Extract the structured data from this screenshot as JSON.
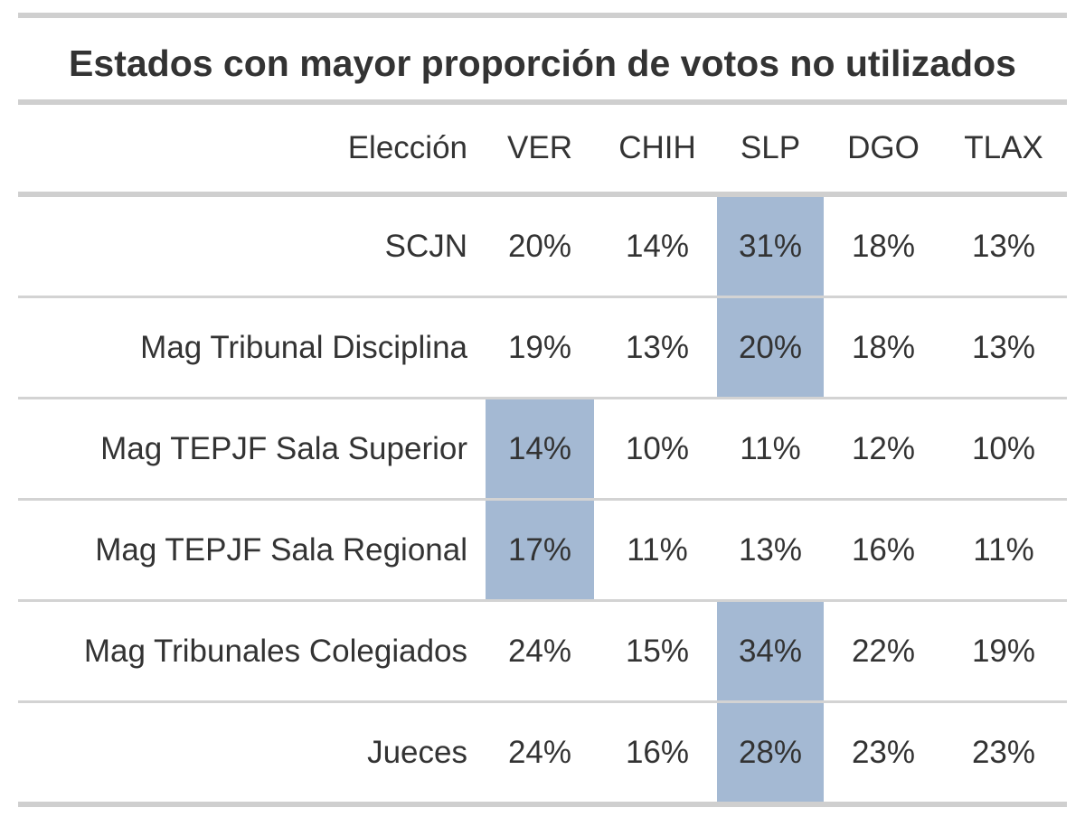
{
  "table": {
    "title": "Estados con mayor proporción de votos no utilizados",
    "column_label": "Elección",
    "columns": [
      "VER",
      "CHIH",
      "SLP",
      "DGO",
      "TLAX"
    ],
    "highlight_color": "#a4b9d3",
    "rows": [
      {
        "label": "SCJN",
        "values": [
          "20%",
          "14%",
          "31%",
          "18%",
          "13%"
        ],
        "highlight_index": 2
      },
      {
        "label": "Mag Tribunal Disciplina",
        "values": [
          "19%",
          "13%",
          "20%",
          "18%",
          "13%"
        ],
        "highlight_index": 2
      },
      {
        "label": "Mag TEPJF Sala Superior",
        "values": [
          "14%",
          "10%",
          "11%",
          "12%",
          "10%"
        ],
        "highlight_index": 0
      },
      {
        "label": "Mag TEPJF Sala Regional",
        "values": [
          "17%",
          "11%",
          "13%",
          "16%",
          "11%"
        ],
        "highlight_index": 0
      },
      {
        "label": "Mag Tribunales Colegiados",
        "values": [
          "24%",
          "15%",
          "34%",
          "22%",
          "19%"
        ],
        "highlight_index": 2
      },
      {
        "label": "Jueces",
        "values": [
          "24%",
          "16%",
          "28%",
          "23%",
          "23%"
        ],
        "highlight_index": 2
      }
    ]
  },
  "chart_data": {
    "type": "table",
    "title": "Estados con mayor proporción de votos no utilizados",
    "row_header": "Elección",
    "columns": [
      "VER",
      "CHIH",
      "SLP",
      "DGO",
      "TLAX"
    ],
    "rows": [
      "SCJN",
      "Mag Tribunal Disciplina",
      "Mag TEPJF Sala Superior",
      "Mag TEPJF Sala Regional",
      "Mag Tribunales Colegiados",
      "Jueces"
    ],
    "values": [
      [
        20,
        14,
        31,
        18,
        13
      ],
      [
        19,
        13,
        20,
        18,
        13
      ],
      [
        14,
        10,
        11,
        12,
        10
      ],
      [
        17,
        11,
        13,
        16,
        11
      ],
      [
        24,
        15,
        34,
        22,
        19
      ],
      [
        24,
        16,
        28,
        23,
        23
      ]
    ],
    "unit": "%"
  }
}
